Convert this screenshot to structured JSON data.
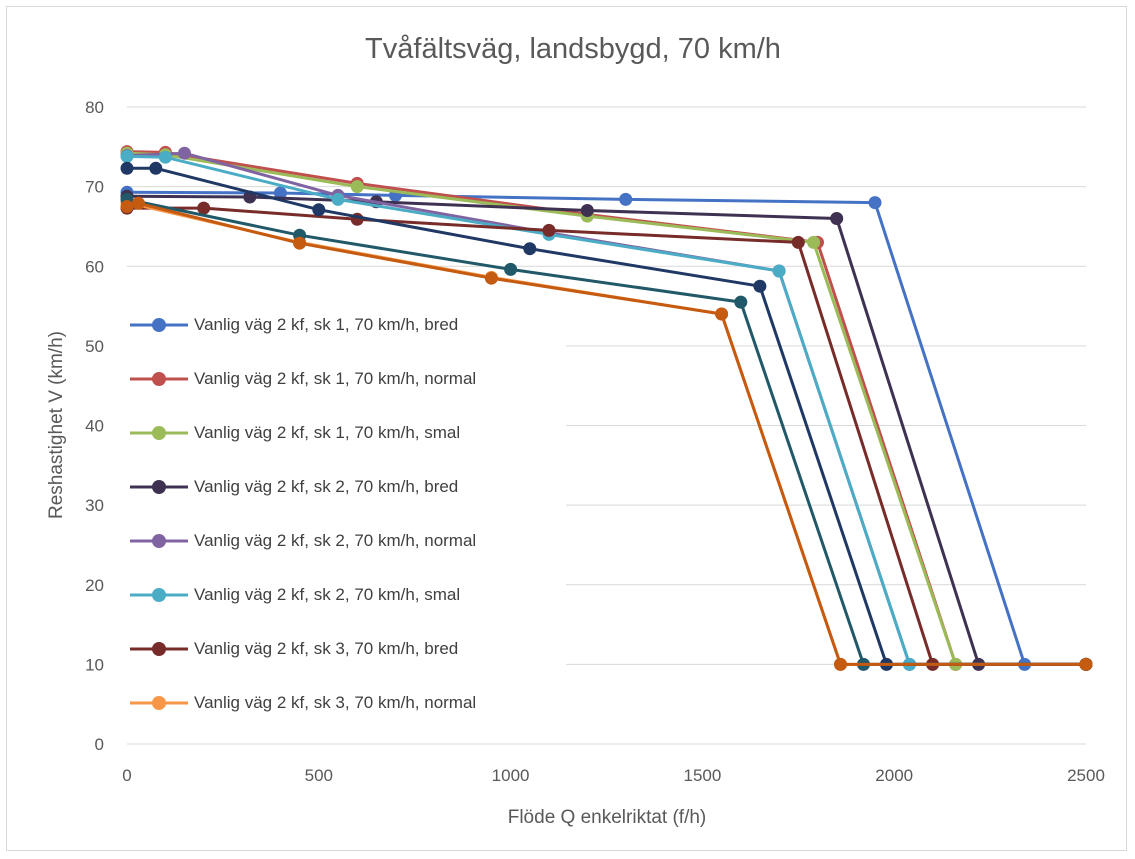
{
  "chart_data": {
    "type": "line",
    "title": "Tvåfältsväg, landsbygd, 70 km/h",
    "xlabel": "Flöde Q enkelriktat (f/h)",
    "ylabel": "Reshastighet V (km/h)",
    "xlim": [
      0,
      2500
    ],
    "ylim": [
      0,
      80
    ],
    "x_ticks": [
      "0",
      "500",
      "1000",
      "1500",
      "2000",
      "2500"
    ],
    "y_ticks": [
      "0",
      "10",
      "20",
      "30",
      "40",
      "50",
      "60",
      "70",
      "80"
    ],
    "grid": "horizontal",
    "legend_position": "left-inside",
    "series": [
      {
        "name": "Vanlig väg 2 kf, sk 1, 70 km/h, bred",
        "color": "#4472C4",
        "points": [
          [
            0,
            69.3
          ],
          [
            400,
            69.2
          ],
          [
            700,
            68.9
          ],
          [
            1300,
            68.4
          ],
          [
            1950,
            68.0
          ],
          [
            2340,
            10
          ],
          [
            2500,
            10
          ]
        ]
      },
      {
        "name": "Vanlig väg 2 kf, sk 1, 70 km/h, normal",
        "color": "#C0504D",
        "points": [
          [
            0,
            74.4
          ],
          [
            100,
            74.3
          ],
          [
            600,
            70.4
          ],
          [
            1200,
            66.5
          ],
          [
            1800,
            63.0
          ],
          [
            2160,
            10
          ],
          [
            2500,
            10
          ]
        ]
      },
      {
        "name": "Vanlig väg 2 kf, sk 1, 70 km/h, smal",
        "color": "#9BBB59",
        "points": [
          [
            0,
            74.2
          ],
          [
            100,
            74.0
          ],
          [
            600,
            70.0
          ],
          [
            1200,
            66.3
          ],
          [
            1790,
            63.0
          ],
          [
            2160,
            10
          ],
          [
            2500,
            10
          ]
        ]
      },
      {
        "name": "Vanlig väg 2 kf, sk 2, 70 km/h, bred",
        "color": "#3F3151",
        "points": [
          [
            0,
            68.8
          ],
          [
            320,
            68.7
          ],
          [
            650,
            68.1
          ],
          [
            1200,
            67.0
          ],
          [
            1850,
            66.0
          ],
          [
            2220,
            10
          ],
          [
            2500,
            10
          ]
        ]
      },
      {
        "name": "Vanlig väg 2 kf, sk 2, 70 km/h, normal",
        "color": "#8064A2",
        "points": [
          [
            0,
            73.9
          ],
          [
            150,
            74.2
          ],
          [
            550,
            68.9
          ],
          [
            1100,
            64.2
          ],
          [
            1700,
            59.4
          ],
          [
            2040,
            10
          ],
          [
            2500,
            10
          ]
        ]
      },
      {
        "name": "Vanlig väg 2 kf, sk 2, 70 km/h, smal",
        "color": "#4BACC6",
        "points": [
          [
            0,
            73.8
          ],
          [
            100,
            73.7
          ],
          [
            550,
            68.4
          ],
          [
            1100,
            64.0
          ],
          [
            1700,
            59.4
          ],
          [
            2040,
            10
          ],
          [
            2500,
            10
          ]
        ]
      },
      {
        "name": "Vanlig väg 2 kf, sk 3, 70 km/h, bred",
        "color": "#772C2A",
        "points": [
          [
            0,
            67.3
          ],
          [
            200,
            67.3
          ],
          [
            600,
            65.9
          ],
          [
            1100,
            64.5
          ],
          [
            1750,
            63.0
          ],
          [
            2100,
            10
          ],
          [
            2500,
            10
          ]
        ]
      },
      {
        "name": "Vanlig väg 2 kf, sk 3, 70 km/h, normal",
        "color": "#F79646",
        "points": [
          [
            0,
            68.0
          ],
          [
            450,
            63.0
          ],
          [
            950,
            58.6
          ],
          [
            1550,
            54.0
          ],
          [
            1860,
            10
          ],
          [
            2500,
            10
          ]
        ]
      },
      {
        "name": "",
        "color": "#1F3864",
        "points": [
          [
            0,
            72.3
          ],
          [
            75,
            72.3
          ],
          [
            500,
            67.1
          ],
          [
            1050,
            62.2
          ],
          [
            1650,
            57.5
          ],
          [
            1980,
            10
          ],
          [
            2500,
            10
          ]
        ]
      },
      {
        "name": "",
        "color": "#215968",
        "points": [
          [
            0,
            68.4
          ],
          [
            450,
            63.9
          ],
          [
            1000,
            59.6
          ],
          [
            1600,
            55.5
          ],
          [
            1920,
            10
          ],
          [
            2500,
            10
          ]
        ]
      },
      {
        "name": "",
        "color": "#C55A11",
        "points": [
          [
            0,
            67.5
          ],
          [
            30,
            67.9
          ],
          [
            450,
            62.9
          ],
          [
            950,
            58.5
          ],
          [
            1550,
            54.0
          ],
          [
            1860,
            10
          ],
          [
            2500,
            10
          ]
        ]
      }
    ],
    "legend": [
      {
        "label": "Vanlig väg 2 kf, sk 1, 70 km/h, bred",
        "color": "#4472C4"
      },
      {
        "label": "Vanlig väg 2 kf, sk 1, 70 km/h, normal",
        "color": "#C0504D"
      },
      {
        "label": "Vanlig väg 2 kf, sk 1, 70 km/h, smal",
        "color": "#9BBB59"
      },
      {
        "label": "Vanlig väg 2 kf, sk 2, 70 km/h, bred",
        "color": "#3F3151"
      },
      {
        "label": "Vanlig väg 2 kf, sk 2, 70 km/h, normal",
        "color": "#8064A2"
      },
      {
        "label": "Vanlig väg 2 kf, sk 2, 70 km/h, smal",
        "color": "#4BACC6"
      },
      {
        "label": "Vanlig väg 2 kf, sk 3, 70 km/h, bred",
        "color": "#772C2A"
      },
      {
        "label": "Vanlig väg 2 kf, sk 3, 70 km/h, normal",
        "color": "#F79646"
      }
    ],
    "colors": {
      "grid": "#d9d9d9",
      "axis_text": "#595959",
      "title": "#595959"
    }
  }
}
